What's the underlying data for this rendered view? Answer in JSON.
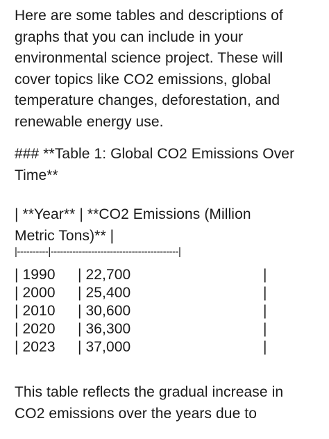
{
  "intro": {
    "lines": [
      "Here are some tables and descriptions of",
      "graphs that you can include in your",
      "environmental science project. These will",
      "cover topics like CO2 emissions, global",
      "temperature changes, deforestation, and",
      "renewable energy use."
    ]
  },
  "heading": {
    "lines": [
      "### **Table 1: Global CO2 Emissions Over",
      "Time**"
    ]
  },
  "table": {
    "header_lines": [
      "| **Year** | **CO2 Emissions (Million",
      "Metric Tons)** |"
    ],
    "separator": "|----------|-----------------------------------------|",
    "rows": [
      {
        "year": "| 1990",
        "value": "| 22,700",
        "end": "|"
      },
      {
        "year": "| 2000",
        "value": "| 25,400",
        "end": "|"
      },
      {
        "year": "| 2010",
        "value": "| 30,600",
        "end": "|"
      },
      {
        "year": "| 2020",
        "value": "| 36,300",
        "end": "|"
      },
      {
        "year": "| 2023",
        "value": "| 37,000",
        "end": "|"
      }
    ]
  },
  "closing": {
    "lines": [
      "This table reflects the gradual increase in",
      "CO2 emissions over the years due to"
    ]
  }
}
